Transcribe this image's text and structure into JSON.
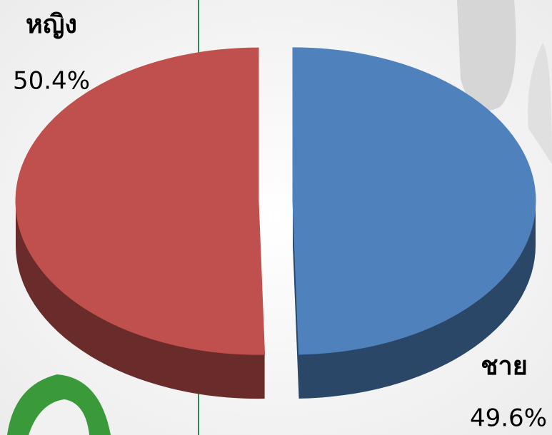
{
  "chart_data": {
    "type": "pie",
    "categories": [
      "ชาย",
      "หญิง"
    ],
    "values": [
      49.6,
      50.4
    ],
    "value_labels": [
      "49.6%",
      "50.4%"
    ],
    "colors": [
      "#4f81bd",
      "#c0504d"
    ]
  }
}
